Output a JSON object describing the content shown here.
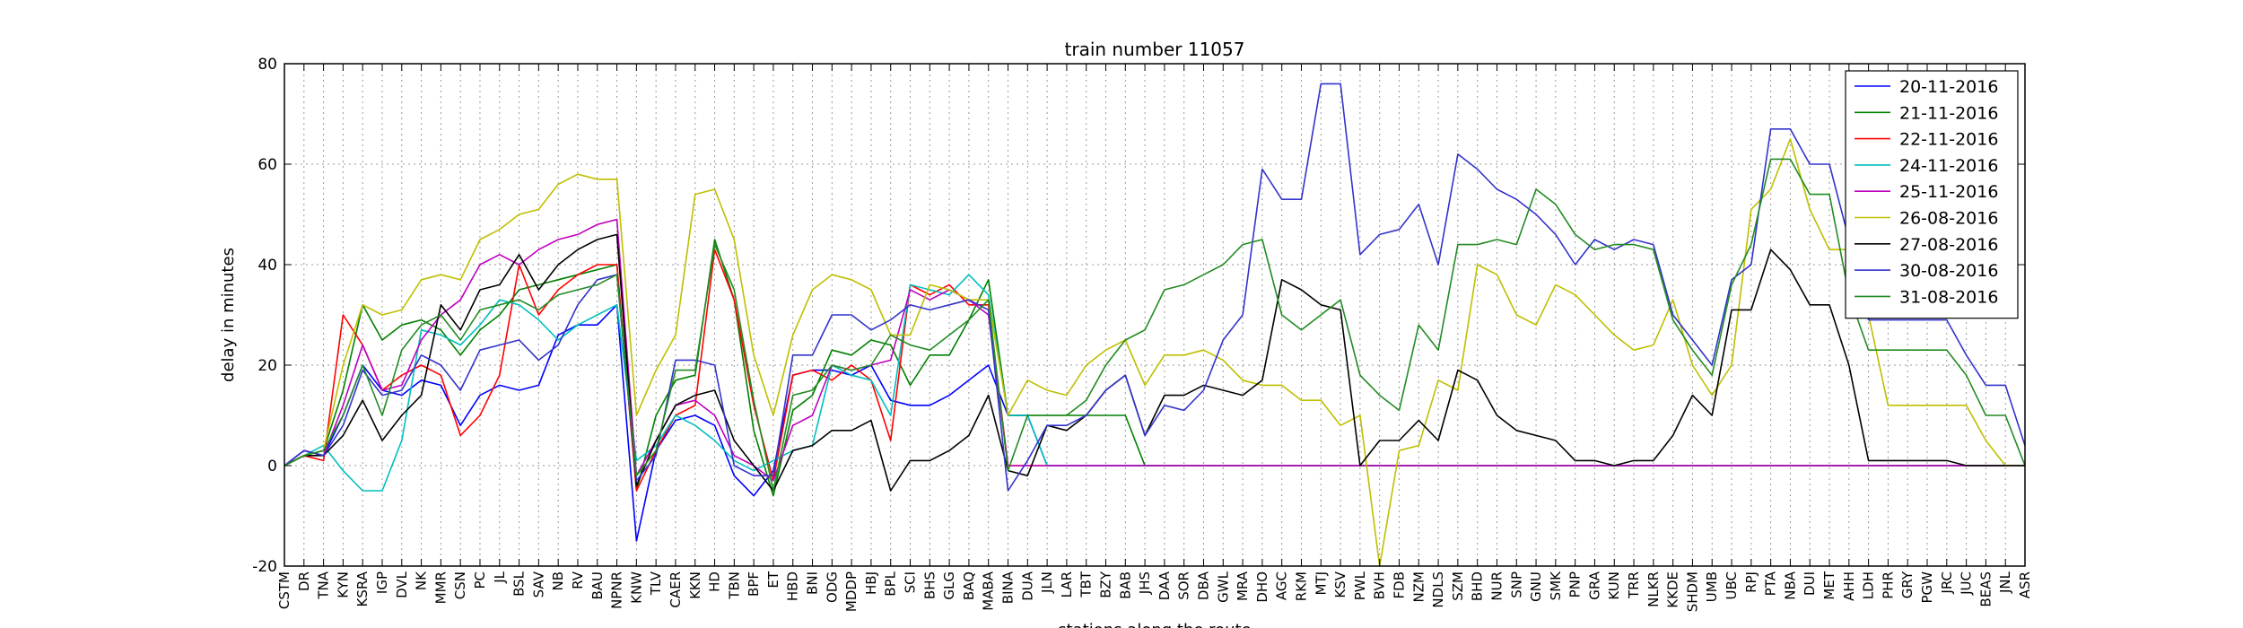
{
  "chart_data": {
    "type": "line",
    "title": "train number 11057",
    "xlabel": "stations along the route",
    "ylabel": "delay in minutes",
    "ylim": [
      -20,
      80
    ],
    "yticks": [
      -20,
      0,
      20,
      40,
      60,
      80
    ],
    "grid": true,
    "legend_position": "top-right",
    "categories": [
      "CSTM",
      "DR",
      "TNA",
      "KYN",
      "KSRA",
      "IGP",
      "DVL",
      "NK",
      "MMR",
      "CSN",
      "PC",
      "JL",
      "BSL",
      "SAV",
      "NB",
      "RV",
      "BAU",
      "NPNR",
      "KNW",
      "TLV",
      "CAER",
      "KKN",
      "HD",
      "TBN",
      "BPF",
      "ET",
      "HBD",
      "BNI",
      "ODG",
      "MDDP",
      "HBJ",
      "BPL",
      "SCI",
      "BHS",
      "GLG",
      "BAQ",
      "MABA",
      "BINA",
      "DUA",
      "JLN",
      "LAR",
      "TBT",
      "BZY",
      "BAB",
      "JHS",
      "DAA",
      "SOR",
      "DBA",
      "GWL",
      "MRA",
      "DHO",
      "AGC",
      "RKM",
      "MTJ",
      "KSV",
      "PWL",
      "BVH",
      "FDB",
      "NZM",
      "NDLS",
      "SZM",
      "BHD",
      "NUR",
      "SNP",
      "GNU",
      "SMK",
      "PNP",
      "GRA",
      "KUN",
      "TRR",
      "NLKR",
      "KKDE",
      "SHDM",
      "UMB",
      "UBC",
      "RPJ",
      "PTA",
      "NBA",
      "DUI",
      "MET",
      "AHH",
      "LDH",
      "PHR",
      "GRY",
      "PGW",
      "JRC",
      "JUC",
      "BEAS",
      "JNL",
      "ASR"
    ],
    "series": [
      {
        "name": "20-11-2016",
        "color": "#0000ff",
        "values": [
          0,
          3,
          2,
          10,
          20,
          15,
          14,
          17,
          16,
          8,
          14,
          16,
          15,
          16,
          26,
          28,
          28,
          32,
          -15,
          3,
          9,
          10,
          8,
          -2,
          -6,
          -1,
          18,
          19,
          19,
          18,
          20,
          13,
          12,
          12,
          14,
          17,
          20,
          10,
          10,
          0,
          0,
          0,
          0,
          0,
          0,
          0,
          0,
          0,
          0,
          0,
          0,
          0,
          0,
          0,
          0,
          0,
          0,
          0,
          0,
          0,
          0,
          0,
          0,
          0,
          0,
          0,
          0,
          0,
          0,
          0,
          0,
          0,
          0,
          0,
          0,
          0,
          0,
          0,
          0,
          0,
          0,
          0,
          0,
          0,
          0,
          0,
          0,
          0,
          0,
          0
        ]
      },
      {
        "name": "21-11-2016",
        "color": "#008000",
        "values": [
          0,
          2,
          3,
          15,
          32,
          25,
          28,
          29,
          27,
          22,
          27,
          30,
          35,
          36,
          37,
          38,
          39,
          40,
          -5,
          10,
          17,
          18,
          45,
          33,
          7,
          -6,
          11,
          14,
          23,
          22,
          25,
          24,
          16,
          22,
          22,
          29,
          37,
          10,
          10,
          10,
          10,
          10,
          10,
          10,
          0,
          0,
          0,
          0,
          0,
          0,
          0,
          0,
          0,
          0,
          0,
          0,
          0,
          0,
          0,
          0,
          0,
          0,
          0,
          0,
          0,
          0,
          0,
          0,
          0,
          0,
          0,
          0,
          0,
          0,
          0,
          0,
          0,
          0,
          0,
          0,
          0,
          0,
          0,
          0,
          0,
          0,
          0,
          0,
          0,
          0
        ]
      },
      {
        "name": "22-11-2016",
        "color": "#ff0000",
        "values": [
          0,
          2,
          1,
          30,
          24,
          15,
          18,
          20,
          18,
          6,
          10,
          18,
          40,
          30,
          35,
          38,
          40,
          40,
          -5,
          3,
          10,
          12,
          43,
          33,
          12,
          -3,
          18,
          19,
          17,
          20,
          17,
          5,
          36,
          34,
          36,
          32,
          32,
          0,
          0,
          0,
          0,
          0,
          0,
          0,
          0,
          0,
          0,
          0,
          0,
          0,
          0,
          0,
          0,
          0,
          0,
          0,
          0,
          0,
          0,
          0,
          0,
          0,
          0,
          0,
          0,
          0,
          0,
          0,
          0,
          0,
          0,
          0,
          0,
          0,
          0,
          0,
          0,
          0,
          0,
          0,
          0,
          0,
          0,
          0,
          0,
          0,
          0,
          0,
          0,
          0
        ]
      },
      {
        "name": "24-11-2016",
        "color": "#00bfbf",
        "values": [
          0,
          2,
          4,
          -1,
          -5,
          -5,
          5,
          27,
          26,
          24,
          28,
          33,
          32,
          29,
          25,
          28,
          30,
          32,
          1,
          4,
          10,
          8,
          5,
          1,
          -1,
          1,
          3,
          4,
          20,
          18,
          17,
          10,
          36,
          35,
          34,
          38,
          34,
          10,
          10,
          0,
          0,
          0,
          0,
          0,
          0,
          0,
          0,
          0,
          0,
          0,
          0,
          0,
          0,
          0,
          0,
          0,
          0,
          0,
          0,
          0,
          0,
          0,
          0,
          0,
          0,
          0,
          0,
          0,
          0,
          0,
          0,
          0,
          0,
          0,
          0,
          0,
          0,
          0,
          0,
          0,
          0,
          0,
          0,
          0,
          0,
          0,
          0,
          0,
          0,
          0
        ]
      },
      {
        "name": "25-11-2016",
        "color": "#bf00bf",
        "values": [
          0,
          3,
          2,
          12,
          24,
          15,
          16,
          25,
          30,
          33,
          40,
          42,
          40,
          43,
          45,
          46,
          48,
          49,
          -2,
          5,
          12,
          13,
          10,
          2,
          0,
          -3,
          8,
          10,
          20,
          19,
          20,
          21,
          35,
          33,
          35,
          33,
          30,
          0,
          0,
          0,
          0,
          0,
          0,
          0,
          0,
          0,
          0,
          0,
          0,
          0,
          0,
          0,
          0,
          0,
          0,
          0,
          0,
          0,
          0,
          0,
          0,
          0,
          0,
          0,
          0,
          0,
          0,
          0,
          0,
          0,
          0,
          0,
          0,
          0,
          0,
          0,
          0,
          0,
          0,
          0,
          0,
          0,
          0,
          0,
          0,
          0,
          0,
          0,
          0,
          0
        ]
      },
      {
        "name": "26-08-2016",
        "color": "#bfbf00",
        "values": [
          0,
          2,
          3,
          20,
          32,
          30,
          31,
          37,
          38,
          37,
          45,
          47,
          50,
          51,
          56,
          58,
          57,
          57,
          10,
          19,
          26,
          54,
          55,
          45,
          22,
          10,
          26,
          35,
          38,
          37,
          35,
          26,
          26,
          36,
          35,
          33,
          33,
          10,
          17,
          15,
          14,
          20,
          23,
          25,
          16,
          22,
          22,
          23,
          21,
          17,
          16,
          16,
          13,
          13,
          8,
          10,
          -20,
          3,
          4,
          17,
          15,
          40,
          38,
          30,
          28,
          36,
          34,
          30,
          26,
          23,
          24,
          33,
          20,
          14,
          20,
          51,
          55,
          65,
          51,
          43,
          43,
          30,
          12,
          12,
          12,
          12,
          12,
          5,
          0,
          0
        ]
      },
      {
        "name": "27-08-2016",
        "color": "#000000",
        "values": [
          0,
          2,
          2,
          6,
          13,
          5,
          10,
          14,
          32,
          27,
          35,
          36,
          42,
          35,
          40,
          43,
          45,
          46,
          -4,
          5,
          12,
          14,
          15,
          5,
          0,
          -5,
          3,
          4,
          7,
          7,
          9,
          -5,
          1,
          1,
          3,
          6,
          14,
          -1,
          -2,
          8,
          7,
          10,
          15,
          18,
          6,
          14,
          14,
          16,
          15,
          14,
          17,
          37,
          35,
          32,
          31,
          0,
          5,
          5,
          9,
          5,
          19,
          17,
          10,
          7,
          6,
          5,
          1,
          1,
          0,
          1,
          1,
          6,
          14,
          10,
          31,
          31,
          43,
          39,
          32,
          32,
          20,
          1,
          1,
          1,
          1,
          1,
          0,
          0,
          0,
          0
        ]
      },
      {
        "name": "30-08-2016",
        "color": "#3333cc",
        "values": [
          0,
          3,
          2,
          8,
          19,
          14,
          15,
          22,
          20,
          15,
          23,
          24,
          25,
          21,
          24,
          32,
          37,
          38,
          -3,
          2,
          21,
          21,
          20,
          0,
          -2,
          -2,
          22,
          22,
          30,
          30,
          27,
          29,
          32,
          31,
          32,
          33,
          31,
          -5,
          1,
          8,
          8,
          10,
          15,
          18,
          6,
          12,
          11,
          15,
          25,
          30,
          59,
          53,
          53,
          76,
          76,
          42,
          46,
          47,
          52,
          40,
          62,
          59,
          55,
          53,
          50,
          46,
          40,
          45,
          43,
          45,
          44,
          30,
          25,
          20,
          37,
          40,
          67,
          67,
          60,
          60,
          45,
          29,
          29,
          29,
          29,
          29,
          22,
          16,
          16,
          4
        ]
      },
      {
        "name": "31-08-2016",
        "color": "#228b22",
        "values": [
          0,
          2,
          3,
          10,
          20,
          10,
          23,
          28,
          30,
          25,
          31,
          32,
          33,
          31,
          34,
          35,
          36,
          38,
          -2,
          3,
          19,
          19,
          44,
          35,
          13,
          -5,
          14,
          15,
          20,
          19,
          20,
          26,
          24,
          23,
          26,
          29,
          33,
          -1,
          10,
          10,
          10,
          13,
          20,
          25,
          27,
          35,
          36,
          38,
          40,
          44,
          45,
          30,
          27,
          30,
          33,
          18,
          14,
          11,
          28,
          23,
          44,
          44,
          45,
          44,
          55,
          52,
          46,
          43,
          44,
          44,
          43,
          29,
          23,
          18,
          36,
          44,
          61,
          61,
          54,
          54,
          34,
          23,
          23,
          23,
          23,
          23,
          18,
          10,
          10,
          0
        ]
      }
    ]
  }
}
